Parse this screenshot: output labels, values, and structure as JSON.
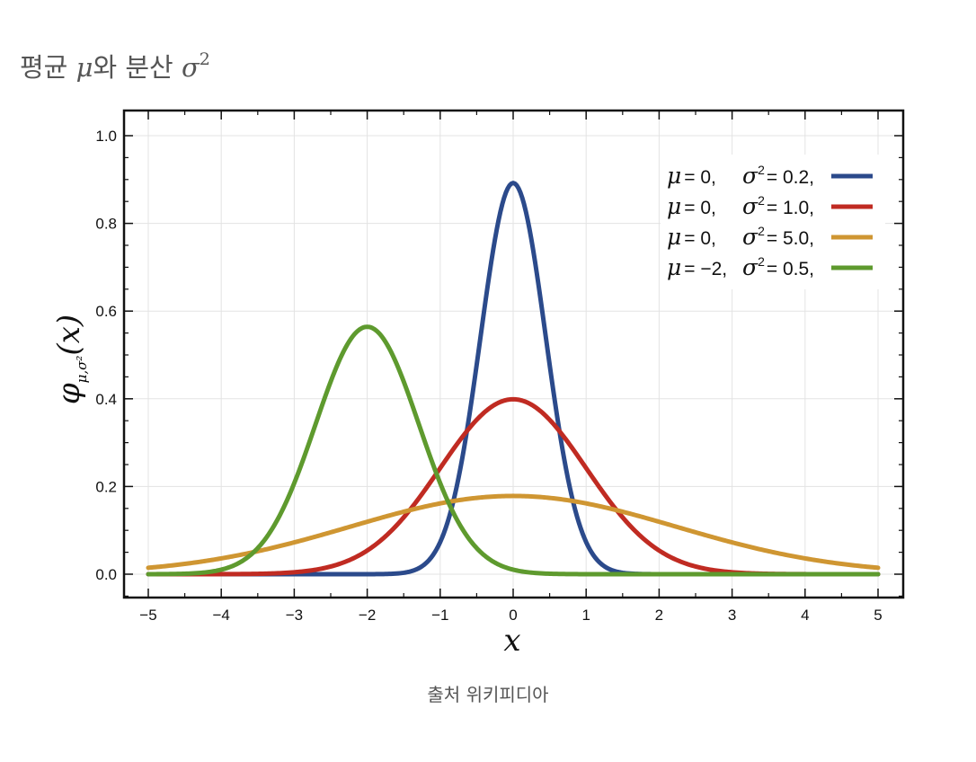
{
  "heading": {
    "prefix": "평균 ",
    "mu": "μ",
    "middle": "와 분산 ",
    "sigma": "σ",
    "sup": "2"
  },
  "caption": "출처 위키피디아",
  "chart_data": {
    "type": "line",
    "xlabel": "x",
    "ylabel_main": "φ",
    "ylabel_sub": "μ,σ²",
    "ylabel_arg": "(x)",
    "xlim": [
      -5,
      5
    ],
    "ylim": [
      -0.05,
      1.05
    ],
    "x_ticks": [
      -5,
      -4,
      -3,
      -2,
      -1,
      0,
      1,
      2,
      3,
      4,
      5
    ],
    "x_tick_labels": [
      "−5",
      "−4",
      "−3",
      "−2",
      "−1",
      "0",
      "1",
      "2",
      "3",
      "4",
      "5"
    ],
    "y_ticks": [
      0.0,
      0.2,
      0.4,
      0.6,
      0.8,
      1.0
    ],
    "y_tick_labels": [
      "0.0",
      "0.2",
      "0.4",
      "0.6",
      "0.8",
      "1.0"
    ],
    "grid": true,
    "legend_position": "top-right",
    "series": [
      {
        "mu_label": "μ",
        "mu_text": "= 0,",
        "sigma_label": "σ",
        "sigma_text": "= 0.2,",
        "mu": 0,
        "variance": 0.2,
        "color": "#2b4a8b"
      },
      {
        "mu_label": "μ",
        "mu_text": "= 0,",
        "sigma_label": "σ",
        "sigma_text": "= 1.0,",
        "mu": 0,
        "variance": 1.0,
        "color": "#c02b22"
      },
      {
        "mu_label": "μ",
        "mu_text": "= 0,",
        "sigma_label": "σ",
        "sigma_text": "= 5.0,",
        "mu": 0,
        "variance": 5.0,
        "color": "#cf9632"
      },
      {
        "mu_label": "μ",
        "mu_text": "= −2,",
        "sigma_label": "σ",
        "sigma_text": "= 0.5,",
        "mu": -2,
        "variance": 0.5,
        "color": "#5e9a2e"
      }
    ]
  }
}
